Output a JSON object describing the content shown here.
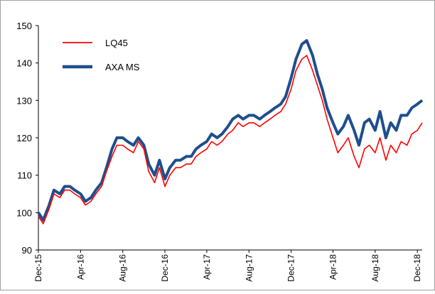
{
  "chart_data": {
    "type": "line",
    "title": "",
    "xlabel": "",
    "ylabel": "",
    "ylim": [
      90,
      150
    ],
    "yticks": [
      90,
      100,
      110,
      120,
      130,
      140,
      150
    ],
    "xlim": [
      "2015-12-01",
      "2018-12-15"
    ],
    "xticks": [
      "2015-12-01",
      "2016-04-01",
      "2016-08-01",
      "2016-12-01",
      "2017-04-01",
      "2017-08-01",
      "2017-12-01",
      "2018-04-01",
      "2018-08-01",
      "2018-12-01"
    ],
    "xtick_labels": [
      "Dec-15",
      "Apr-16",
      "Aug-16",
      "Dec-16",
      "Apr-17",
      "Aug-17",
      "Dec-17",
      "Apr-18",
      "Aug-18",
      "Dec-18"
    ],
    "grid": false,
    "legend_position": "top-left",
    "series": [
      {
        "name": "LQ45",
        "color": "#ff0000",
        "x": [
          "2015-12-01",
          "2015-12-15",
          "2016-01-01",
          "2016-01-15",
          "2016-02-01",
          "2016-02-15",
          "2016-03-01",
          "2016-03-15",
          "2016-04-01",
          "2016-04-15",
          "2016-05-01",
          "2016-05-15",
          "2016-06-01",
          "2016-06-15",
          "2016-07-01",
          "2016-07-15",
          "2016-08-01",
          "2016-08-15",
          "2016-09-01",
          "2016-09-15",
          "2016-10-01",
          "2016-10-15",
          "2016-11-01",
          "2016-11-15",
          "2016-12-01",
          "2016-12-15",
          "2017-01-01",
          "2017-01-15",
          "2017-02-01",
          "2017-02-15",
          "2017-03-01",
          "2017-03-15",
          "2017-04-01",
          "2017-04-15",
          "2017-05-01",
          "2017-05-15",
          "2017-06-01",
          "2017-06-15",
          "2017-07-01",
          "2017-07-15",
          "2017-08-01",
          "2017-08-15",
          "2017-09-01",
          "2017-09-15",
          "2017-10-01",
          "2017-10-15",
          "2017-11-01",
          "2017-11-15",
          "2017-12-01",
          "2017-12-15",
          "2018-01-01",
          "2018-01-15",
          "2018-02-01",
          "2018-02-15",
          "2018-03-01",
          "2018-03-15",
          "2018-04-01",
          "2018-04-15",
          "2018-05-01",
          "2018-05-15",
          "2018-06-01",
          "2018-06-15",
          "2018-07-01",
          "2018-07-15",
          "2018-08-01",
          "2018-08-15",
          "2018-09-01",
          "2018-09-15",
          "2018-10-01",
          "2018-10-15",
          "2018-11-01",
          "2018-11-15",
          "2018-12-01",
          "2018-12-15"
        ],
        "values": [
          99,
          97,
          101,
          105,
          104,
          106,
          106,
          105,
          104,
          102,
          103,
          105,
          107,
          111,
          115,
          118,
          118,
          117,
          116,
          119,
          117,
          111,
          108,
          112,
          107,
          110,
          112,
          112,
          113,
          113,
          115,
          116,
          117,
          119,
          118,
          119,
          121,
          122,
          124,
          123,
          124,
          124,
          123,
          124,
          125,
          126,
          127,
          129,
          133,
          138,
          141,
          142,
          138,
          134,
          130,
          125,
          120,
          116,
          118,
          120,
          115,
          112,
          117,
          118,
          116,
          120,
          114,
          118,
          116,
          119,
          118,
          121,
          122,
          124
        ]
      },
      {
        "name": "AXA MS",
        "color": "#1f4e8c",
        "x": [
          "2015-12-01",
          "2015-12-15",
          "2016-01-01",
          "2016-01-15",
          "2016-02-01",
          "2016-02-15",
          "2016-03-01",
          "2016-03-15",
          "2016-04-01",
          "2016-04-15",
          "2016-05-01",
          "2016-05-15",
          "2016-06-01",
          "2016-06-15",
          "2016-07-01",
          "2016-07-15",
          "2016-08-01",
          "2016-08-15",
          "2016-09-01",
          "2016-09-15",
          "2016-10-01",
          "2016-10-15",
          "2016-11-01",
          "2016-11-15",
          "2016-12-01",
          "2016-12-15",
          "2017-01-01",
          "2017-01-15",
          "2017-02-01",
          "2017-02-15",
          "2017-03-01",
          "2017-03-15",
          "2017-04-01",
          "2017-04-15",
          "2017-05-01",
          "2017-05-15",
          "2017-06-01",
          "2017-06-15",
          "2017-07-01",
          "2017-07-15",
          "2017-08-01",
          "2017-08-15",
          "2017-09-01",
          "2017-09-15",
          "2017-10-01",
          "2017-10-15",
          "2017-11-01",
          "2017-11-15",
          "2017-12-01",
          "2017-12-15",
          "2018-01-01",
          "2018-01-15",
          "2018-02-01",
          "2018-02-15",
          "2018-03-01",
          "2018-03-15",
          "2018-04-01",
          "2018-04-15",
          "2018-05-01",
          "2018-05-15",
          "2018-06-01",
          "2018-06-15",
          "2018-07-01",
          "2018-07-15",
          "2018-08-01",
          "2018-08-15",
          "2018-09-01",
          "2018-09-15",
          "2018-10-01",
          "2018-10-15",
          "2018-11-01",
          "2018-11-15",
          "2018-12-01",
          "2018-12-15"
        ],
        "values": [
          100,
          98,
          102,
          106,
          105,
          107,
          107,
          106,
          105,
          103,
          104,
          106,
          108,
          112,
          117,
          120,
          120,
          119,
          118,
          120,
          118,
          113,
          110,
          114,
          109,
          112,
          114,
          114,
          115,
          115,
          117,
          118,
          119,
          121,
          120,
          121,
          123,
          125,
          126,
          125,
          126,
          126,
          125,
          126,
          127,
          128,
          129,
          131,
          136,
          141,
          145,
          146,
          142,
          137,
          133,
          128,
          124,
          121,
          123,
          126,
          122,
          118,
          124,
          125,
          122,
          127,
          120,
          124,
          122,
          126,
          126,
          128,
          129,
          130
        ]
      }
    ]
  }
}
